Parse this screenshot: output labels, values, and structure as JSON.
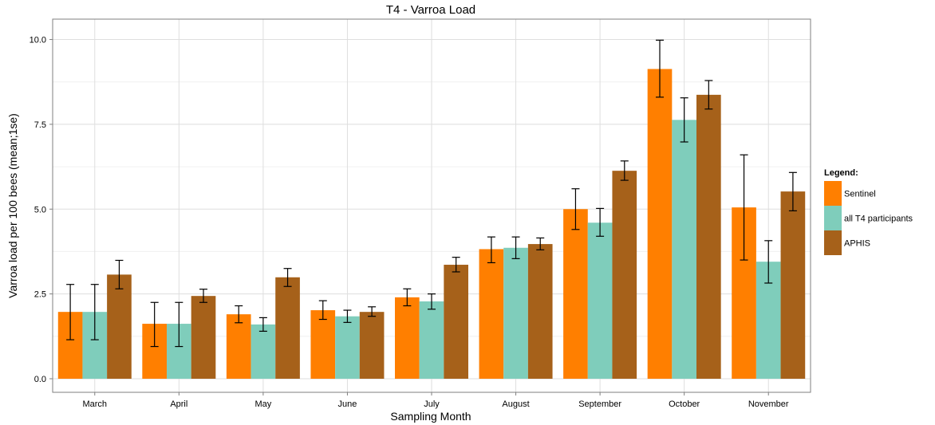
{
  "chart_data": {
    "type": "bar",
    "title": "T4 - Varroa Load",
    "xlabel": "Sampling Month",
    "ylabel": "Varroa load per 100 bees (mean;1se)",
    "categories": [
      "March",
      "April",
      "May",
      "June",
      "July",
      "August",
      "September",
      "October",
      "November"
    ],
    "ylim": [
      -0.4,
      10.6
    ],
    "yticks": [
      0.0,
      2.5,
      5.0,
      7.5,
      10.0
    ],
    "ytick_labels": [
      "0.0",
      "2.5",
      "5.0",
      "7.5",
      "10.0"
    ],
    "grid": true,
    "legend": {
      "title": "Legend:",
      "position": "right"
    },
    "series": [
      {
        "name": "Sentinel",
        "color": "#ff7f00",
        "values": [
          1.97,
          1.62,
          1.9,
          2.02,
          2.4,
          3.82,
          5.0,
          9.13,
          5.05
        ],
        "error_low": [
          1.15,
          0.95,
          1.65,
          1.75,
          2.15,
          3.42,
          4.4,
          8.3,
          3.5
        ],
        "error_high": [
          2.78,
          2.25,
          2.15,
          2.3,
          2.65,
          4.18,
          5.6,
          9.98,
          6.6
        ]
      },
      {
        "name": "all T4 participants",
        "color": "#7fcdbb",
        "values": [
          1.97,
          1.62,
          1.6,
          1.84,
          2.28,
          3.86,
          4.6,
          7.63,
          3.45
        ],
        "error_low": [
          1.15,
          0.95,
          1.4,
          1.66,
          2.05,
          3.54,
          4.2,
          6.98,
          2.82
        ],
        "error_high": [
          2.78,
          2.25,
          1.8,
          2.02,
          2.5,
          4.18,
          5.02,
          8.28,
          4.07
        ]
      },
      {
        "name": "APHIS",
        "color": "#a6611a",
        "values": [
          3.07,
          2.44,
          2.99,
          1.97,
          3.36,
          3.97,
          6.13,
          8.37,
          5.52
        ],
        "error_low": [
          2.65,
          2.25,
          2.72,
          1.84,
          3.15,
          3.8,
          5.85,
          7.95,
          4.95
        ],
        "error_high": [
          3.49,
          2.64,
          3.25,
          2.12,
          3.58,
          4.15,
          6.42,
          8.79,
          6.08
        ]
      }
    ]
  }
}
